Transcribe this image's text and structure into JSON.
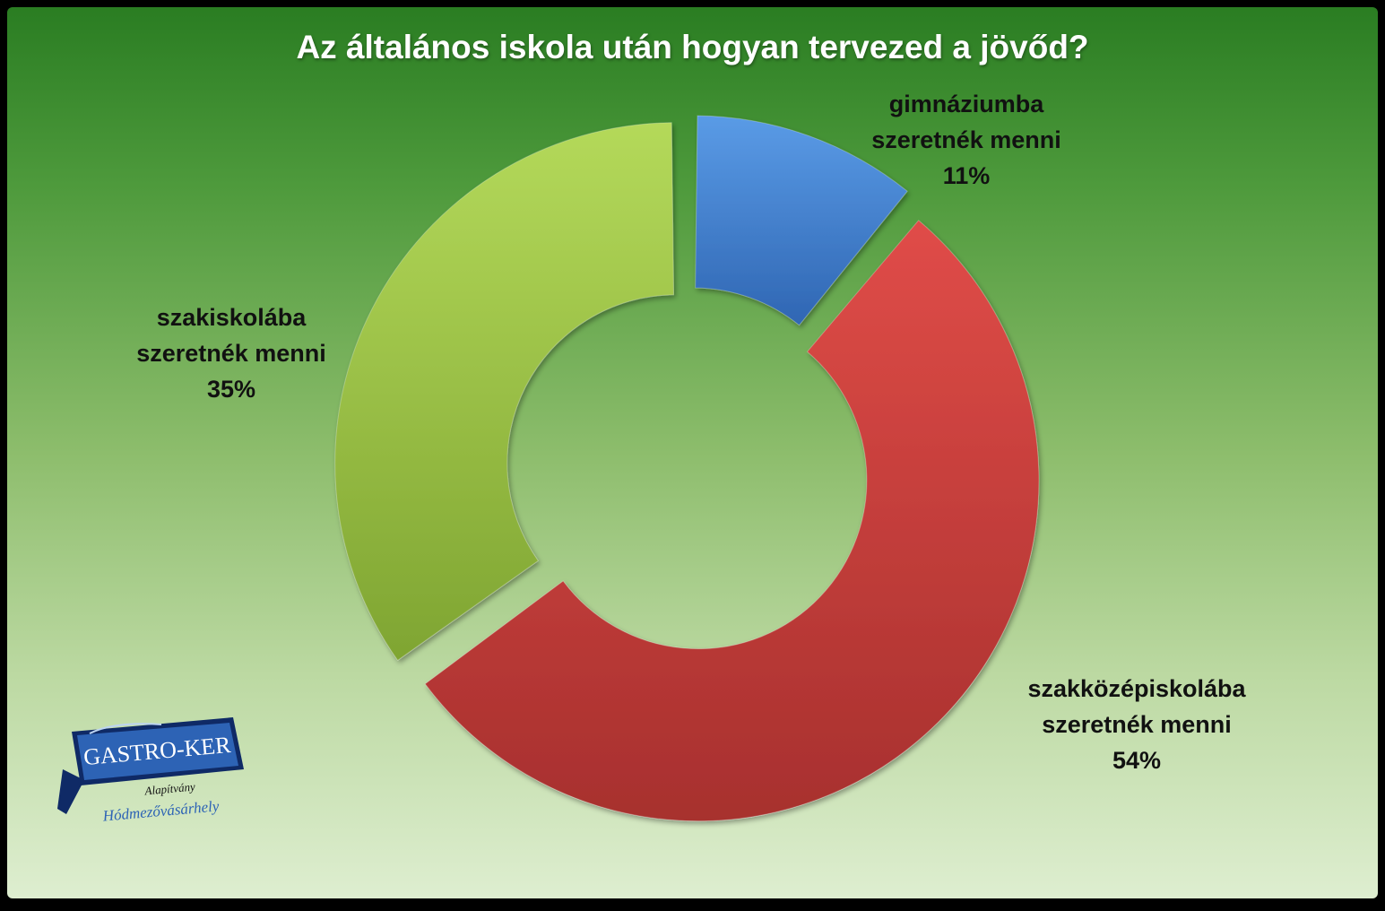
{
  "chart_data": {
    "type": "pie",
    "title": "Az általános iskola után hogyan tervezed a jövőd?",
    "slices": [
      {
        "label_line1": "gimnáziumba",
        "label_line2": "szeretnék menni",
        "value": 11,
        "value_label": "11%",
        "color": "#3f7fcf"
      },
      {
        "label_line1": "szakközépiskolába",
        "label_line2": "szeretnék menni",
        "value": 54,
        "value_label": "54%",
        "color": "#c83c3a"
      },
      {
        "label_line1": "szakiskolába",
        "label_line2": "szeretnék menni",
        "value": 35,
        "value_label": "35%",
        "color": "#9ec44a"
      }
    ]
  },
  "logo": {
    "name": "GASTRO-KER",
    "subtitle": "Alapítvány",
    "city": "Hódmezővásárhely"
  },
  "colors": {
    "background_top": "#2a7d22",
    "background_bottom": "#deeed0",
    "title": "#ffffff"
  }
}
